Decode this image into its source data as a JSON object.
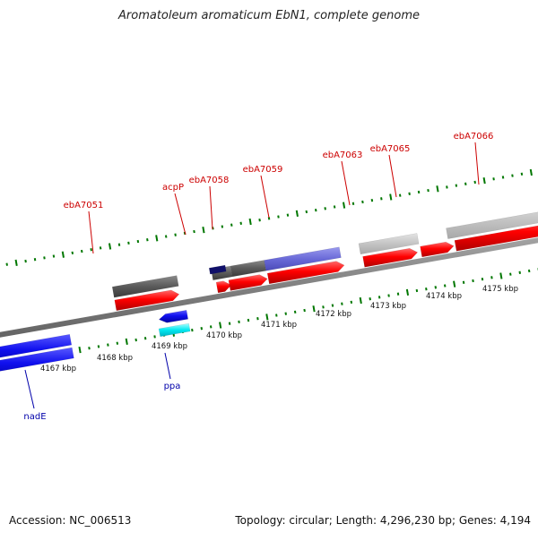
{
  "header": {
    "title": "Aromatoleum aromaticum EbN1, complete genome"
  },
  "footer": {
    "accession": "Accession: NC_006513",
    "summary": "Topology: circular; Length: 4,296,230 bp; Genes: 4,194"
  },
  "colors": {
    "forward_gene": "#ff0000",
    "reverse_gene": "#1010ff",
    "reverse_gene_light": "#00e5ee",
    "tick": "#007700",
    "backbone": "#808080",
    "forward_label": "#cc0000",
    "reverse_label": "#0000aa"
  },
  "scale": {
    "ticks": [
      "4167 kbp",
      "4168 kbp",
      "4169 kbp",
      "4170 kbp",
      "4171 kbp",
      "4172 kbp",
      "4173 kbp",
      "4174 kbp",
      "4175 kbp"
    ]
  },
  "genes": {
    "forward_labels": [
      "ebA7051",
      "acpP",
      "ebA7058",
      "ebA7059",
      "ebA7063",
      "ebA7065",
      "ebA7066"
    ],
    "reverse_labels": [
      "nadE",
      "ppa"
    ]
  }
}
